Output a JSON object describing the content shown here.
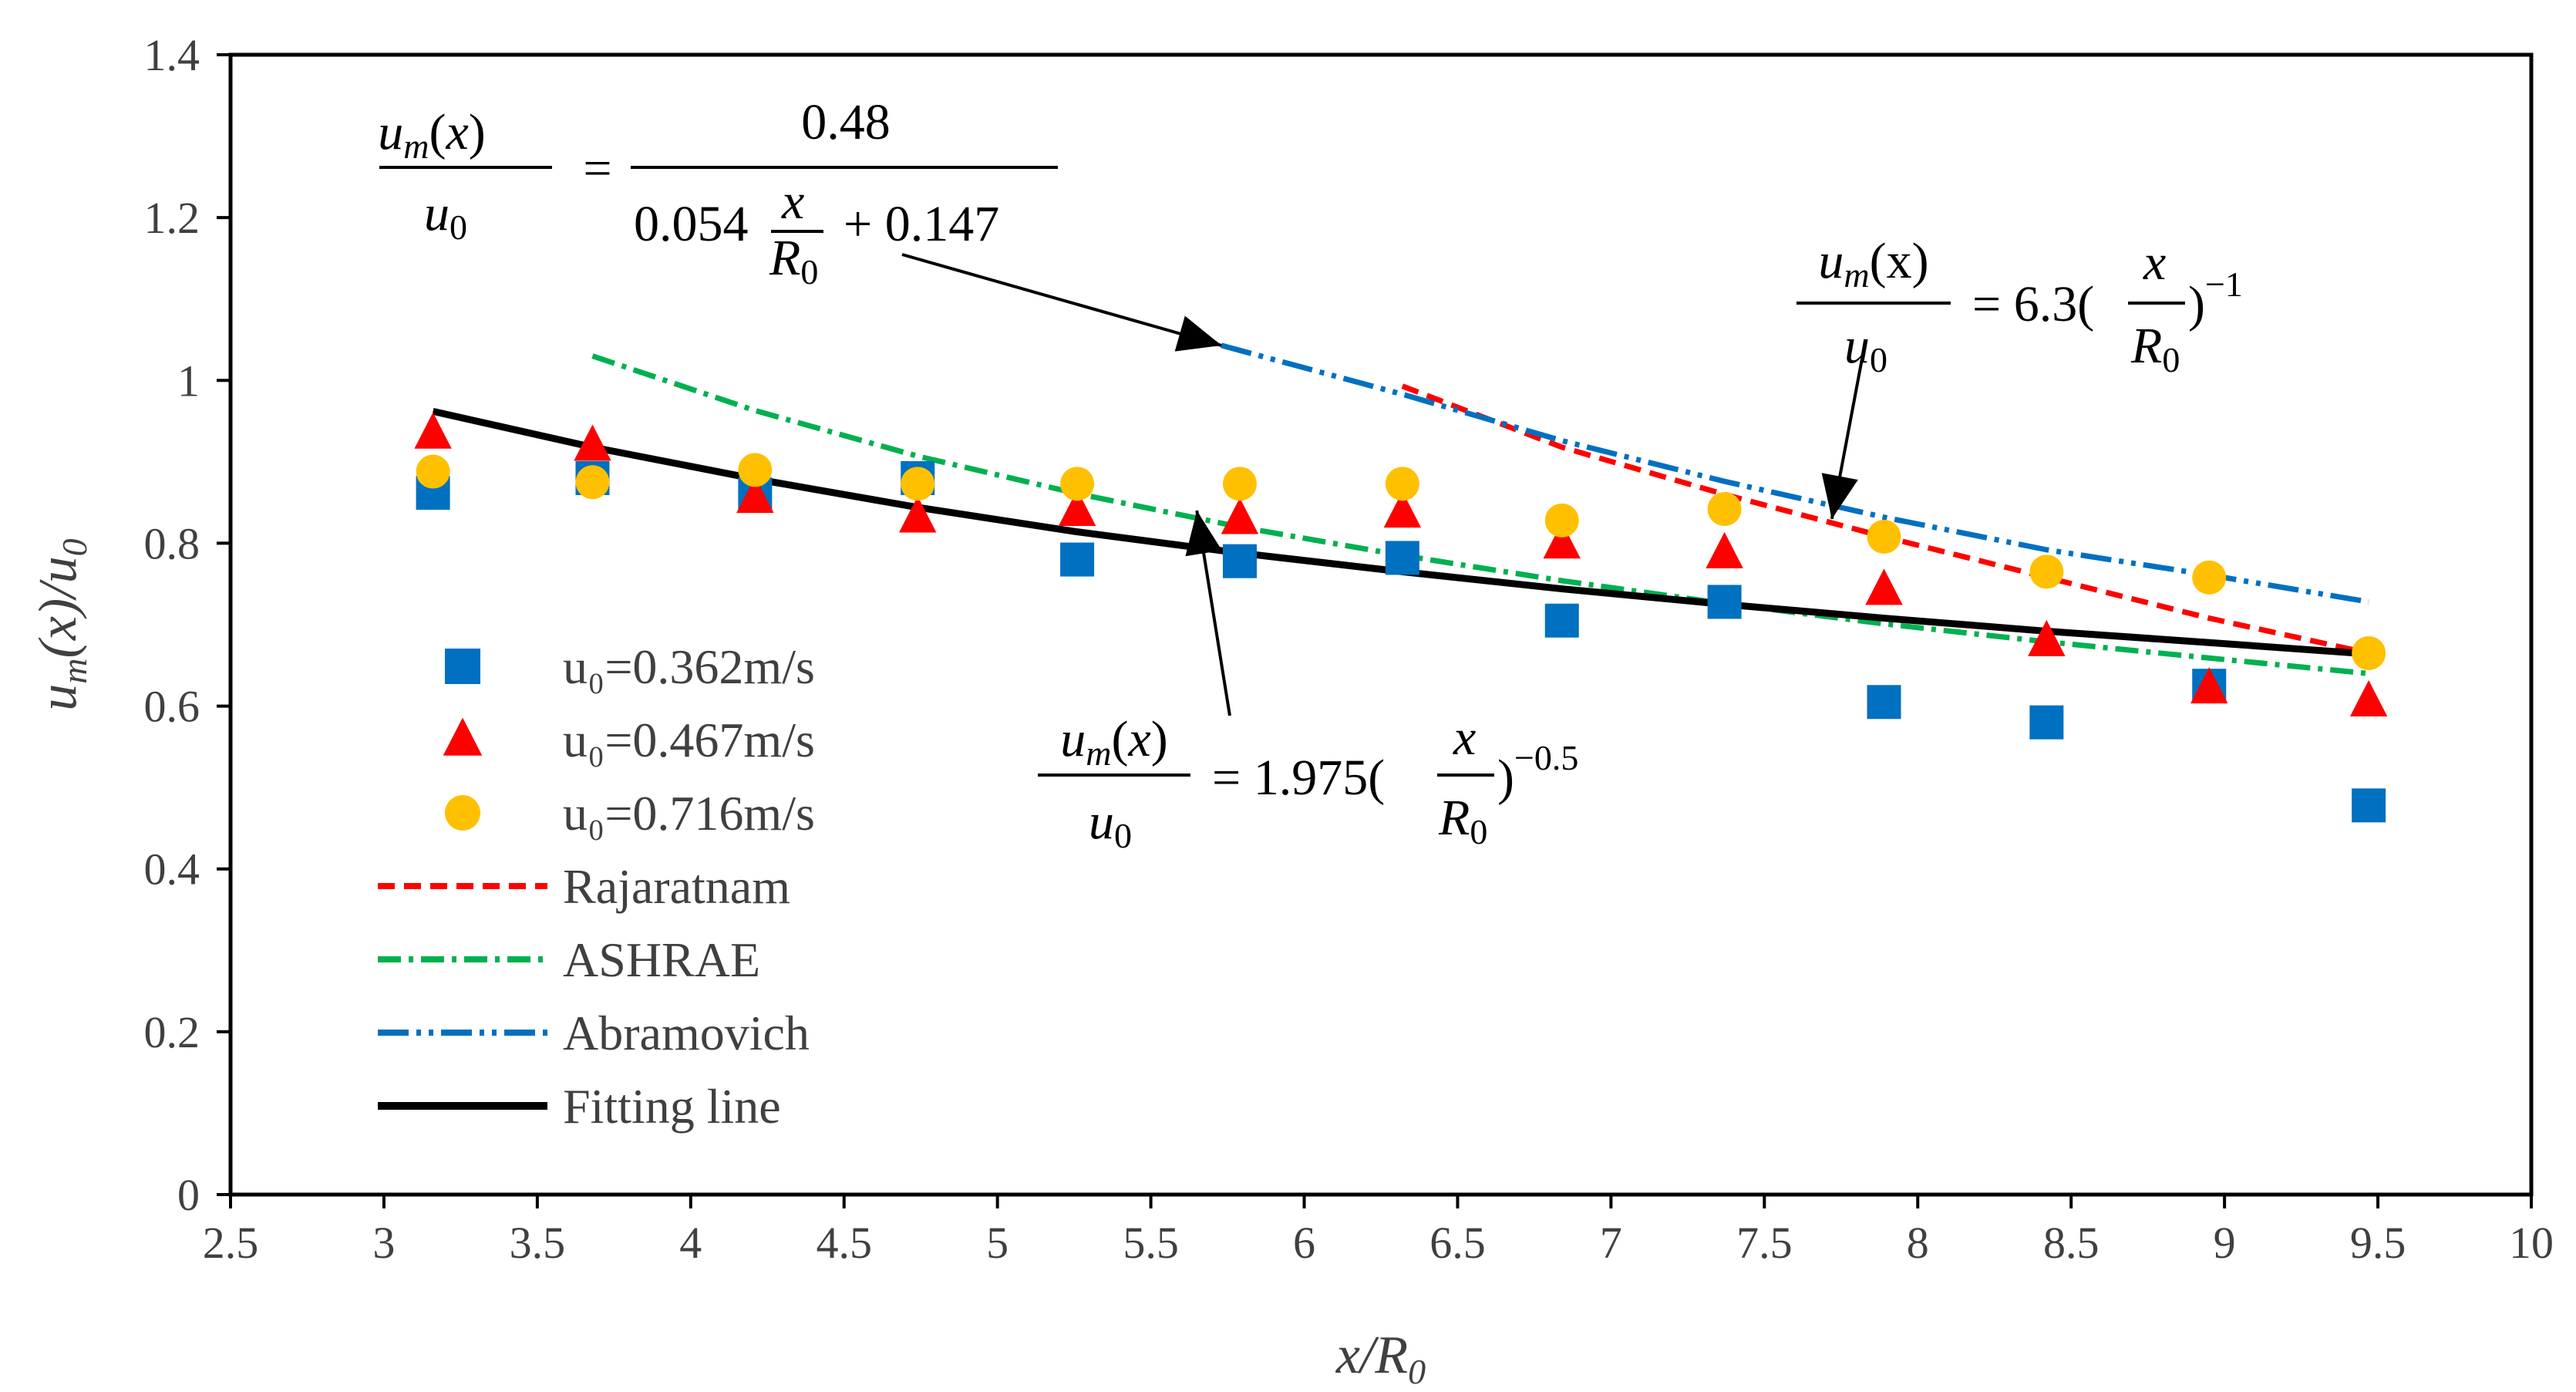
{
  "chart_data": {
    "type": "scatter",
    "xlim": [
      2.5,
      10
    ],
    "ylim": [
      0,
      1.4
    ],
    "x_ticks": [
      "2.5",
      "3",
      "3.5",
      "4",
      "4.5",
      "5",
      "5.5",
      "6",
      "6.5",
      "7",
      "7.5",
      "8",
      "8.5",
      "9",
      "9.5",
      "10"
    ],
    "y_ticks": [
      "0",
      "0.2",
      "0.4",
      "0.6",
      "0.8",
      "1",
      "1.2",
      "1.4"
    ],
    "xlabel": "x/R0",
    "ylabel": "um(x)/u0",
    "legend_position": "left",
    "grid": false,
    "series": [
      {
        "name": "u₀=0.362m/s",
        "kind": "marker",
        "marker": "square",
        "color": "#0070C0",
        "x": [
          3.16,
          3.68,
          4.21,
          4.74,
          5.26,
          5.79,
          6.32,
          6.84,
          7.37,
          7.89,
          8.42,
          8.95,
          9.47
        ],
        "y": [
          0.862,
          0.88,
          0.86,
          0.88,
          0.78,
          0.778,
          0.782,
          0.705,
          0.728,
          0.605,
          0.58,
          0.625,
          0.478
        ]
      },
      {
        "name": "u₀=0.467m/s",
        "kind": "marker",
        "marker": "triangle",
        "color": "#FF0000",
        "x": [
          3.16,
          3.68,
          4.21,
          4.74,
          5.26,
          5.79,
          6.32,
          6.84,
          7.37,
          7.89,
          8.42,
          8.95,
          9.47
        ],
        "y": [
          0.935,
          0.92,
          0.856,
          0.832,
          0.84,
          0.83,
          0.838,
          0.8,
          0.788,
          0.743,
          0.68,
          0.622,
          0.606
        ]
      },
      {
        "name": "u₀=0.716m/s",
        "kind": "marker",
        "marker": "circle",
        "color": "#FFC000",
        "x": [
          3.16,
          3.68,
          4.21,
          4.74,
          5.26,
          5.79,
          6.32,
          6.84,
          7.37,
          7.89,
          8.42,
          8.95,
          9.47
        ],
        "y": [
          0.888,
          0.875,
          0.89,
          0.873,
          0.873,
          0.873,
          0.873,
          0.828,
          0.842,
          0.808,
          0.765,
          0.758,
          0.665
        ]
      },
      {
        "name": "Rajaratnam",
        "kind": "line",
        "dash": "22,12",
        "color": "#FF0000",
        "x": [
          6.32,
          6.84,
          7.37,
          7.89,
          8.42,
          8.95,
          9.47
        ],
        "y": [
          0.993,
          0.918,
          0.86,
          0.808,
          0.758,
          0.708,
          0.665
        ]
      },
      {
        "name": "ASHRAE",
        "kind": "line",
        "dash": "30,10,6,10",
        "color": "#00B050",
        "x": [
          3.68,
          4.21,
          4.74,
          5.26,
          5.79,
          6.32,
          6.84,
          7.37,
          7.89,
          8.42,
          8.95,
          9.47
        ],
        "y": [
          1.03,
          0.963,
          0.907,
          0.861,
          0.82,
          0.785,
          0.754,
          0.726,
          0.701,
          0.679,
          0.659,
          0.64
        ]
      },
      {
        "name": "Abramovich",
        "kind": "line",
        "dash": "40,10,6,10,6,10",
        "color": "#0070C0",
        "x": [
          5.73,
          6.32,
          6.84,
          7.37,
          7.89,
          8.42,
          8.95,
          9.47
        ],
        "y": [
          1.043,
          0.983,
          0.926,
          0.876,
          0.832,
          0.792,
          0.761,
          0.728
        ]
      },
      {
        "name": "Fitting line",
        "kind": "line",
        "dash": "",
        "color": "#000000",
        "x": [
          3.16,
          3.68,
          4.21,
          4.74,
          5.26,
          5.79,
          6.32,
          6.84,
          7.37,
          7.89,
          8.42,
          8.95,
          9.47
        ],
        "y": [
          0.962,
          0.918,
          0.879,
          0.844,
          0.814,
          0.788,
          0.765,
          0.744,
          0.725,
          0.708,
          0.692,
          0.678,
          0.664
        ]
      }
    ],
    "annotations": [
      {
        "type": "equation",
        "text": "um(x)/u0 = 0.48 / (0.054 x/R0 + 0.147)",
        "arrow_to": [
          5.73,
          1.043
        ]
      },
      {
        "type": "equation",
        "text": "um(x)/u0 = 6.3(x/R0)^-1",
        "arrow_to": [
          7.72,
          0.83
        ]
      },
      {
        "type": "equation",
        "text": "um(x)/u0 = 1.975(x/R0)^-0.5",
        "arrow_to": [
          5.65,
          0.84
        ]
      }
    ]
  }
}
